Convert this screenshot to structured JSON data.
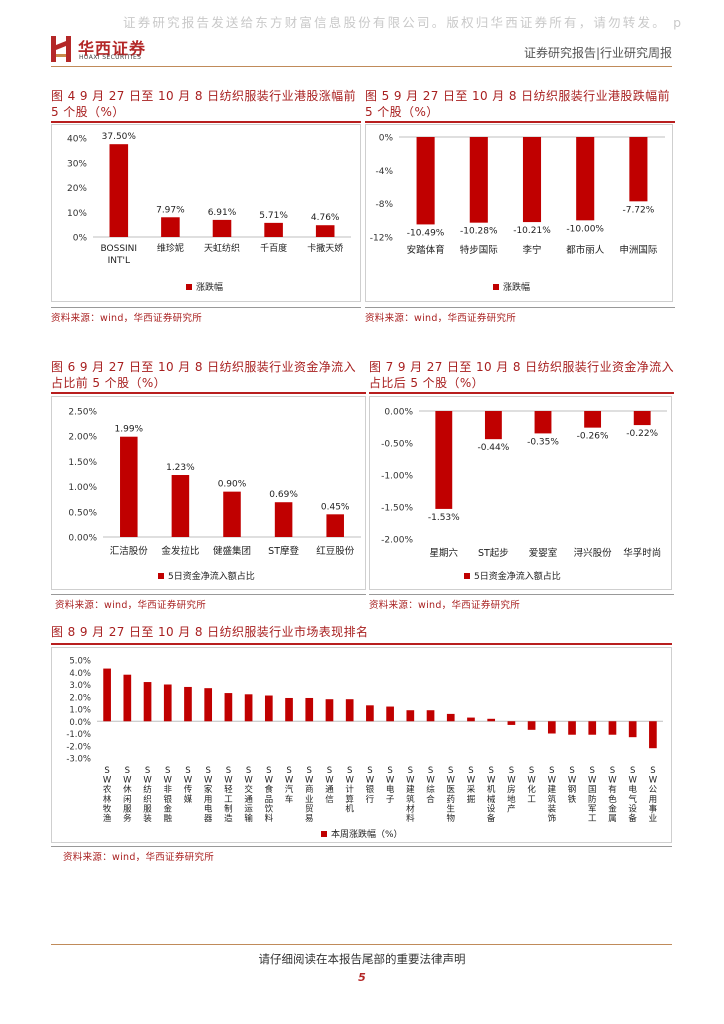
{
  "watermark": "证券研究报告发送给东方财富信息股份有限公司。版权归华西证券所有，请勿转发。 p",
  "logo": {
    "cn": "华西证券",
    "en": "HUAXI SECURITIES"
  },
  "header": {
    "right": "证券研究报告|行业研究周报"
  },
  "colors": {
    "accent": "#b81e1e",
    "bar": "#c00000",
    "rule": "#c08b5a"
  },
  "charts": {
    "fig4": {
      "title": "图 4 9 月 27 日至 10 月 8 日纺织服装行业港股涨幅前 5 个股（%）",
      "source": "资料来源：wind，华西证券研究所",
      "legend": "涨跌幅",
      "chart_data": {
        "type": "bar",
        "categories": [
          "BOSSINI INT'L",
          "维珍妮",
          "天虹纺织",
          "千百度",
          "卡撒天娇"
        ],
        "values": [
          37.5,
          7.97,
          6.91,
          5.71,
          4.76
        ],
        "value_labels": [
          "37.50%",
          "7.97%",
          "6.91%",
          "5.71%",
          "4.76%"
        ],
        "ylim": [
          0,
          40
        ],
        "yticks": [
          "0%",
          "10%",
          "20%",
          "30%",
          "40%"
        ]
      }
    },
    "fig5": {
      "title": "图 5 9 月 27 日至 10 月 8 日纺织服装行业港股跌幅前 5 个股（%）",
      "source": "资料来源：wind，华西证券研究所",
      "legend": "涨跌幅",
      "chart_data": {
        "type": "bar",
        "categories": [
          "安踏体育",
          "特步国际",
          "李宁",
          "都市丽人",
          "申洲国际"
        ],
        "values": [
          -10.49,
          -10.28,
          -10.21,
          -10.0,
          -7.72
        ],
        "value_labels": [
          "-10.49%",
          "-10.28%",
          "-10.21%",
          "-10.00%",
          "-7.72%"
        ],
        "ylim": [
          -12,
          0
        ],
        "yticks": [
          "0%",
          "-4%",
          "-8%",
          "-12%"
        ]
      }
    },
    "fig6": {
      "title": "图 6 9 月 27 日至 10 月 8 日纺织服装行业资金净流入占比前 5 个股（%）",
      "source": "资料来源：wind，华西证券研究所",
      "legend": "5日资金净流入额占比",
      "chart_data": {
        "type": "bar",
        "categories": [
          "汇洁股份",
          "金发拉比",
          "健盛集团",
          "ST摩登",
          "红豆股份"
        ],
        "values": [
          1.99,
          1.23,
          0.9,
          0.69,
          0.45
        ],
        "value_labels": [
          "1.99%",
          "1.23%",
          "0.90%",
          "0.69%",
          "0.45%"
        ],
        "ylim": [
          0,
          2.5
        ],
        "yticks": [
          "0.00%",
          "0.50%",
          "1.00%",
          "1.50%",
          "2.00%",
          "2.50%"
        ]
      }
    },
    "fig7": {
      "title": "图 7 9 月 27 日至 10 月 8 日纺织服装行业资金净流入占比后 5 个股（%）",
      "source": "资料来源：wind，华西证券研究所",
      "legend": "5日资金净流入额占比",
      "chart_data": {
        "type": "bar",
        "categories": [
          "星期六",
          "ST起步",
          "爱婴室",
          "浔兴股份",
          "华孚时尚"
        ],
        "values": [
          -1.53,
          -0.44,
          -0.35,
          -0.26,
          -0.22
        ],
        "value_labels": [
          "-1.53%",
          "-0.44%",
          "-0.35%",
          "-0.26%",
          "-0.22%"
        ],
        "ylim": [
          -2.0,
          0
        ],
        "yticks": [
          "0.00%",
          "-0.50%",
          "-1.00%",
          "-1.50%",
          "-2.00%"
        ]
      }
    },
    "fig8": {
      "title": "图 8 9 月 27 日至 10 月 8 日纺织服装行业市场表现排名",
      "source": "资料来源：wind，华西证券研究所",
      "legend": "本周涨跌幅（%）",
      "chart_data": {
        "type": "bar",
        "categories": [
          "SW农林牧渔",
          "SW休闲服务",
          "SW纺织服装",
          "SW非银金融",
          "SW传媒",
          "SW家用电器",
          "SW轻工制造",
          "SW交通运输",
          "SW食品饮料",
          "SW汽车",
          "SW商业贸易",
          "SW通信",
          "SW计算机",
          "SW银行",
          "SW电子",
          "SW建筑材料",
          "SW综合",
          "SW医药生物",
          "SW采掘",
          "SW机械设备",
          "SW房地产",
          "SW化工",
          "SW建筑装饰",
          "SW钢铁",
          "SW国防军工",
          "SW有色金属",
          "SW电气设备",
          "SW公用事业"
        ],
        "values": [
          4.3,
          3.8,
          3.2,
          3.0,
          2.8,
          2.7,
          2.3,
          2.2,
          2.1,
          1.9,
          1.9,
          1.8,
          1.8,
          1.3,
          1.2,
          0.9,
          0.9,
          0.6,
          0.3,
          0.2,
          -0.3,
          -0.7,
          -1.0,
          -1.1,
          -1.1,
          -1.1,
          -1.3,
          -2.2
        ],
        "ylim": [
          -3.0,
          5.0
        ],
        "yticks": [
          "5.0%",
          "4.0%",
          "3.0%",
          "2.0%",
          "1.0%",
          "0.0%",
          "-1.0%",
          "-2.0%",
          "-3.0%"
        ]
      }
    }
  },
  "footer": {
    "note": "请仔细阅读在本报告尾部的重要法律声明",
    "page": "5"
  }
}
